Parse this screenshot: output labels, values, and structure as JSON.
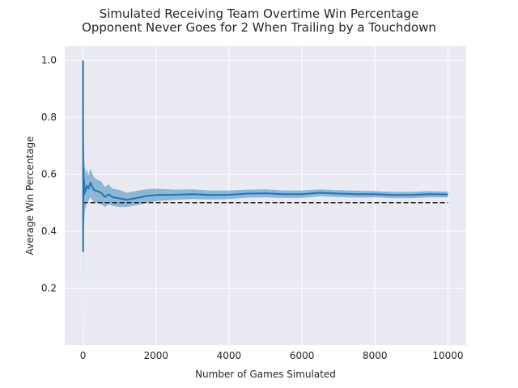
{
  "chart_data": {
    "type": "line",
    "title_lines": [
      "Simulated Receiving Team Overtime Win Percentage",
      "Opponent Never Goes for 2 When Trailing by a Touchdown"
    ],
    "xlabel": "Number of Games Simulated",
    "ylabel": "Average Win Percentage",
    "xlim": [
      -500,
      10500
    ],
    "ylim": [
      0.0,
      1.05
    ],
    "xticks": [
      0,
      2000,
      4000,
      6000,
      8000,
      10000
    ],
    "yticks": [
      0.2,
      0.4,
      0.6,
      0.8,
      1.0
    ],
    "xtick_labels": [
      "0",
      "2000",
      "4000",
      "6000",
      "8000",
      "10000"
    ],
    "ytick_labels": [
      "0.2",
      "0.4",
      "0.6",
      "0.8",
      "1.0"
    ],
    "grid": true,
    "background": "#eaeaf2",
    "series": [
      {
        "kind": "running-mean",
        "color": "#1f77b4",
        "band_color": "#1f77b4",
        "x": [
          1,
          3,
          6,
          10,
          15,
          20,
          30,
          40,
          50,
          70,
          100,
          150,
          200,
          300,
          400,
          500,
          600,
          700,
          800,
          1000,
          1200,
          1400,
          1600,
          1800,
          2000,
          2500,
          3000,
          3500,
          4000,
          4500,
          5000,
          5500,
          6000,
          6500,
          7000,
          7500,
          8000,
          8500,
          9000,
          9500,
          10000
        ],
        "y": [
          1.0,
          0.33,
          0.6,
          0.5,
          0.62,
          0.55,
          0.58,
          0.53,
          0.55,
          0.54,
          0.56,
          0.55,
          0.57,
          0.545,
          0.54,
          0.535,
          0.52,
          0.53,
          0.52,
          0.515,
          0.51,
          0.515,
          0.52,
          0.525,
          0.527,
          0.528,
          0.53,
          0.527,
          0.528,
          0.532,
          0.533,
          0.53,
          0.53,
          0.535,
          0.532,
          0.53,
          0.53,
          0.527,
          0.527,
          0.53,
          0.529
        ],
        "lower": [
          0.0,
          0.0,
          0.25,
          0.25,
          0.4,
          0.38,
          0.44,
          0.44,
          0.47,
          0.48,
          0.5,
          0.505,
          0.52,
          0.5,
          0.5,
          0.495,
          0.485,
          0.495,
          0.49,
          0.485,
          0.485,
          0.49,
          0.495,
          0.502,
          0.505,
          0.51,
          0.513,
          0.511,
          0.513,
          0.518,
          0.519,
          0.517,
          0.517,
          0.523,
          0.52,
          0.518,
          0.519,
          0.516,
          0.516,
          0.519,
          0.519
        ],
        "upper": [
          1.0,
          1.0,
          0.95,
          0.8,
          0.78,
          0.72,
          0.71,
          0.64,
          0.63,
          0.6,
          0.62,
          0.595,
          0.62,
          0.59,
          0.58,
          0.575,
          0.555,
          0.565,
          0.55,
          0.545,
          0.535,
          0.54,
          0.545,
          0.548,
          0.549,
          0.546,
          0.547,
          0.543,
          0.543,
          0.546,
          0.547,
          0.543,
          0.543,
          0.547,
          0.544,
          0.542,
          0.541,
          0.538,
          0.538,
          0.541,
          0.539
        ]
      }
    ],
    "reference_line": {
      "y": 0.5,
      "x_start": 0,
      "x_end": 10000,
      "style": "dashed",
      "color": "#262626"
    }
  }
}
